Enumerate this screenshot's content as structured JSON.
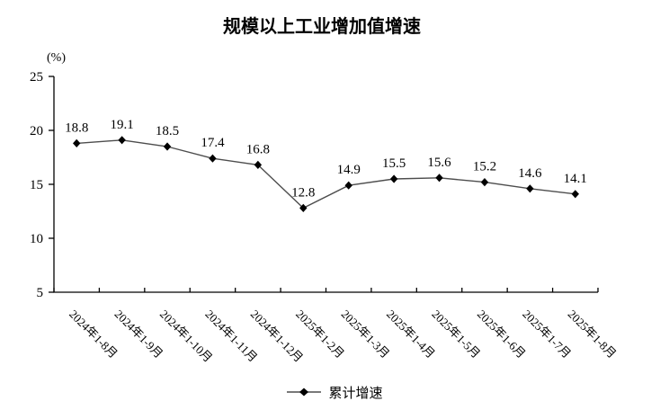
{
  "page": {
    "background": "#ffffff"
  },
  "chart_data": {
    "type": "line",
    "title": "规模以上工业增加值增速",
    "unit_label": "(%)",
    "xlabel": "",
    "ylabel": "(%)",
    "categories": [
      "2024年1-8月",
      "2024年1-9月",
      "2024年1-10月",
      "2024年1-11月",
      "2024年1-12月",
      "2025年1-2月",
      "2025年1-3月",
      "2025年1-4月",
      "2025年1-5月",
      "2025年1-6月",
      "2025年1-7月",
      "2025年1-8月"
    ],
    "series": [
      {
        "name": "累计增速",
        "marker": "diamond",
        "values": [
          18.8,
          19.1,
          18.5,
          17.4,
          16.8,
          12.8,
          14.9,
          15.5,
          15.6,
          15.2,
          14.6,
          14.1
        ]
      }
    ],
    "ylim": [
      5,
      25
    ],
    "yticks": [
      25,
      20,
      15,
      10,
      5
    ],
    "grid": false,
    "data_labels": true,
    "legend_position": "bottom",
    "colors": {
      "line": "#4d4d4d",
      "marker": "#000000",
      "axis": "#000000",
      "text": "#000000",
      "background": "#ffffff"
    }
  }
}
